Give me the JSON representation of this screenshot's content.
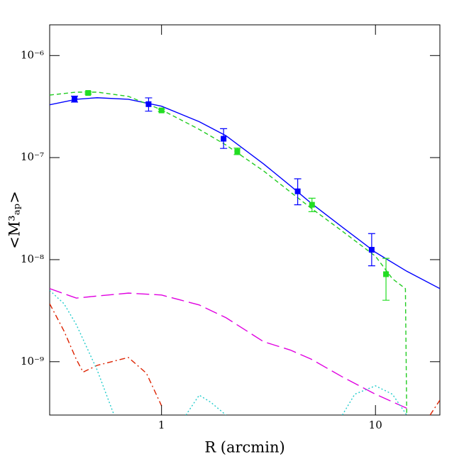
{
  "chart_data": {
    "type": "line",
    "xlabel": "R (arcmin)",
    "ylabel": "<M³ₐₚ>",
    "xlog": true,
    "ylog": true,
    "xlim": [
      0.3,
      20
    ],
    "ylim": [
      3e-10,
      2e-06
    ],
    "xticks": [
      1,
      10
    ],
    "yticks": [
      {
        "value": 1e-09,
        "label": "10⁻⁹"
      },
      {
        "value": 1e-08,
        "label": "10⁻⁸"
      },
      {
        "value": 1e-07,
        "label": "10⁻⁷"
      },
      {
        "value": 1e-06,
        "label": "10⁻⁶"
      }
    ],
    "series": [
      {
        "style": "solid",
        "color": "#0000ff",
        "x": [
          0.3,
          0.4,
          0.5,
          0.7,
          1,
          1.5,
          2,
          3,
          4,
          5,
          7,
          10,
          14,
          20
        ],
        "values": [
          3.29e-07,
          3.73e-07,
          3.86e-07,
          3.73e-07,
          3.19e-07,
          2.25e-07,
          1.64e-07,
          8.67e-08,
          5.3e-08,
          3.58e-08,
          2.08e-08,
          1.18e-08,
          7.7e-09,
          5.2e-09
        ]
      },
      {
        "style": "dashed",
        "color": "#22cc22",
        "x": [
          0.3,
          0.4,
          0.5,
          0.7,
          1,
          1.5,
          2,
          3,
          4,
          5,
          7,
          10,
          12,
          13.8,
          14
        ],
        "values": [
          4.1e-07,
          4.38e-07,
          4.38e-07,
          3.98e-07,
          2.94e-07,
          1.89e-07,
          1.33e-07,
          7.4e-08,
          4.6e-08,
          3.2e-08,
          1.9e-08,
          1.08e-08,
          6.5e-09,
          5.2e-09,
          3e-10
        ]
      },
      {
        "style": "longdash",
        "color": "#e000e0",
        "x": [
          0.3,
          0.4,
          0.5,
          0.7,
          1,
          1.5,
          2,
          3,
          4,
          5,
          7,
          10,
          14
        ],
        "values": [
          5.2e-09,
          4.2e-09,
          4.4e-09,
          4.7e-09,
          4.5e-09,
          3.6e-09,
          2.7e-09,
          1.57e-09,
          1.3e-09,
          1.06e-09,
          7.1e-10,
          4.8e-10,
          3.5e-10
        ]
      },
      {
        "style": "dashdot",
        "color": "#dd2200",
        "x": [
          0.3,
          0.35,
          0.4,
          0.43,
          0.5,
          0.7,
          0.85,
          1,
          1.1,
          18,
          20
        ],
        "values": [
          3.7e-09,
          2e-09,
          1.05e-09,
          7.9e-10,
          9.2e-10,
          1.1e-09,
          7.7e-10,
          3.7e-10,
          null,
          3e-10,
          4.2e-10
        ]
      },
      {
        "style": "dotted",
        "color": "#22cccc",
        "x": [
          0.3,
          0.35,
          0.4,
          0.5,
          0.6,
          1,
          1.3,
          1.5,
          1.7,
          2,
          5,
          7,
          8,
          10,
          12,
          14
        ],
        "values": [
          5e-09,
          3.7e-09,
          2.3e-09,
          8.3e-10,
          3e-10,
          null,
          3e-10,
          4.7e-10,
          4e-10,
          3e-10,
          null,
          3e-10,
          4.8e-10,
          5.8e-10,
          4.8e-10,
          3e-10
        ]
      },
      {
        "style": "points",
        "color": "#0000ff",
        "x": [
          0.392,
          0.87,
          1.95,
          4.33,
          9.6
        ],
        "values": [
          3.73e-07,
          3.34e-07,
          1.53e-07,
          4.67e-08,
          1.25e-08
        ],
        "ylow": [
          3.5e-07,
          2.85e-07,
          1.23e-07,
          3.45e-08,
          8.7e-09
        ],
        "yhigh": [
          4e-07,
          3.85e-07,
          1.92e-07,
          6.2e-08,
          1.8e-08
        ]
      },
      {
        "style": "points",
        "color": "#22dd22",
        "x": [
          0.454,
          1.0,
          2.26,
          5.05,
          11.2
        ],
        "values": [
          4.3e-07,
          2.9e-07,
          1.15e-07,
          3.45e-08,
          7.2e-09
        ],
        "ylow": [
          4.2e-07,
          2.82e-07,
          1.07e-07,
          2.95e-08,
          4e-09
        ],
        "yhigh": [
          4.4e-07,
          2.98e-07,
          1.24e-07,
          4e-08,
          1.03e-08
        ]
      }
    ]
  }
}
